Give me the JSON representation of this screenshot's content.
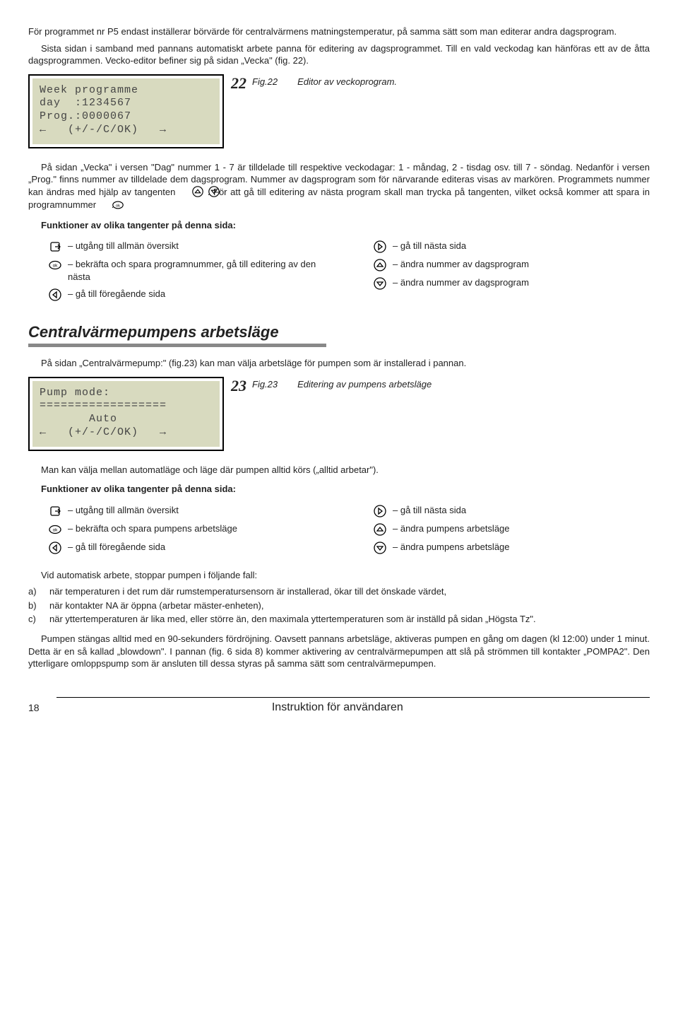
{
  "para1": "För programmet nr P5 endast inställerar börvärde för centralvärmens matningstemperatur, på samma sätt som man editerar andra dagsprogram.",
  "para2": "Sista sidan i samband med pannans automatiskt arbete panna för editering av dagsprogrammet. Till en vald veckodag kan hänföras ett av de åtta dagsprogrammen. Vecko-editor befiner sig på sidan „Vecka\" (fig. 22).",
  "lcd22": {
    "line1": "Week programme",
    "line2": "day  :1234567",
    "line3": "Prog.:0000067",
    "line4": "←   (+/-/C/OK)   →",
    "num": "22"
  },
  "fig22": {
    "num": "Fig.22",
    "text": "Editor av veckoprogram."
  },
  "para3a": "På sidan „Vecka\" i versen \"Dag\" nummer 1 - 7 är tilldelade till respektive veckodagar: 1 - måndag, 2 - tisdag osv. till 7 - söndag. Nedanför i versen „Prog.\" finns nummer av tilldelade dem dagsprogram. Nummer av dagsprogram som för närvarande editeras visas av markören. Programmets nummer kan ändras med hjälp av tangenten",
  "para3b": ". För att gå till editering av nästa program skall man trycka på tangenten, vilket också kommer att spara in programnummer",
  "para3c": ".",
  "fnTitle": "Funktioner av olika tangenter på denna sida:",
  "keys22": {
    "left": [
      {
        "icon": "exit",
        "text": "– utgång till allmän översikt"
      },
      {
        "icon": "ok",
        "text": "– bekräfta och spara programnummer, gå till editering av den nästa"
      },
      {
        "icon": "left",
        "text": "– gå till föregående sida"
      }
    ],
    "right": [
      {
        "icon": "right",
        "text": "– gå till nästa sida"
      },
      {
        "icon": "up",
        "text": "– ändra nummer av dagsprogram"
      },
      {
        "icon": "down",
        "text": "– ändra nummer av dagsprogram"
      }
    ]
  },
  "sectionTitle": "Centralvärmepumpens arbetsläge",
  "para4": "På sidan „Centralvärmepump:\" (fig.23) kan man välja arbetsläge för pumpen som är installerad i pannan.",
  "lcd23": {
    "line1": "Pump mode:",
    "line2": "==================",
    "line3": "       Auto",
    "line4": "←   (+/-/C/OK)   →",
    "num": "23"
  },
  "fig23": {
    "num": "Fig.23",
    "text": "Editering av pumpens arbetsläge"
  },
  "para5": "Man kan välja mellan automatläge och läge där pumpen alltid körs („alltid arbetar\").",
  "keys23": {
    "left": [
      {
        "icon": "exit",
        "text": "– utgång till allmän översikt"
      },
      {
        "icon": "ok",
        "text": "– bekräfta och spara pumpens arbetsläge"
      },
      {
        "icon": "left",
        "text": "– gå till föregående sida"
      }
    ],
    "right": [
      {
        "icon": "right",
        "text": "– gå till nästa sida"
      },
      {
        "icon": "up",
        "text": "– ändra pumpens arbetsläge"
      },
      {
        "icon": "down",
        "text": "– ändra pumpens arbetsläge"
      }
    ]
  },
  "para6": "Vid automatisk arbete, stoppar pumpen i följande fall:",
  "abc": [
    {
      "l": "a)",
      "t": "när temperaturen i det rum där rumstemperatursensorn är installerad, ökar till det önskade värdet,"
    },
    {
      "l": "b)",
      "t": "när kontakter NA är öppna (arbetar mäster-enheten),"
    },
    {
      "l": "c)",
      "t": "när yttertemperaturen är lika med, eller större än, den maximala yttertemperaturen som är inställd på sidan „Högsta Tz\"."
    }
  ],
  "para7": "Pumpen stängas alltid med en 90-sekunders fördröjning. Oavsett pannans arbetsläge, aktiveras pumpen en gång om dagen (kl 12:00) under 1 minut. Detta är en så kallad „blowdown\". I pannan (fig. 6 sida 8) kommer aktivering av centralvärmepumpen att slå på strömmen till kontakter „POMPA2\". Den ytterligare omloppspump som är ansluten till dessa styras på samma sätt som centralvärmepumpen.",
  "footer": {
    "page": "18",
    "label": "Instruktion för användaren"
  }
}
